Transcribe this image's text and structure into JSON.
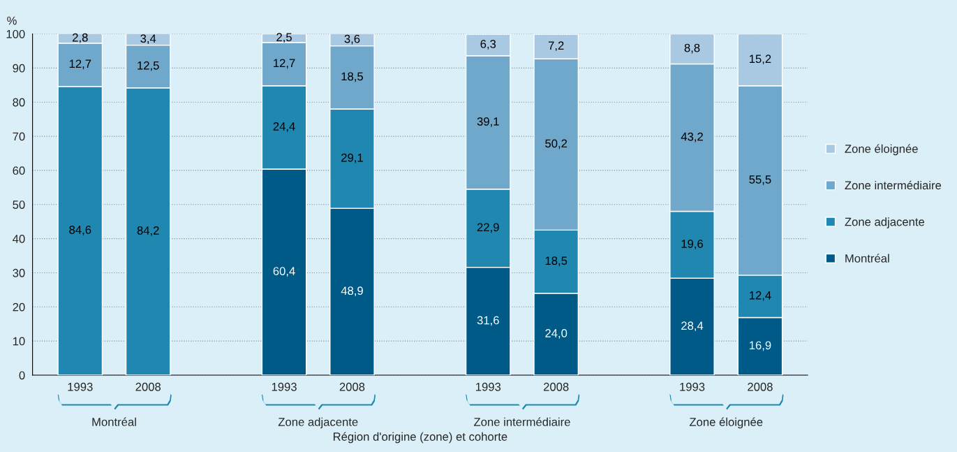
{
  "chart_data": {
    "type": "bar",
    "stacked": true,
    "ylabel": "%",
    "xlabel": "Région d'origine (zone) et cohorte",
    "categories": [
      "1993",
      "2008",
      null,
      "1993",
      "2008",
      null,
      "1993",
      "2008",
      null,
      "1993",
      "2008"
    ],
    "series": [
      {
        "name": "Montréal",
        "color": "#005a87",
        "values": [
          null,
          null,
          null,
          60.4,
          48.9,
          null,
          31.6,
          24.0,
          null,
          28.4,
          16.9
        ],
        "value_labels": [
          null,
          null,
          null,
          "60,4",
          "48,9",
          null,
          "31,6",
          "24,0",
          null,
          "28,4",
          "16,9"
        ]
      },
      {
        "name": "Zone adjacente",
        "color": "#1f87b0",
        "values": [
          84.6,
          84.2,
          null,
          24.4,
          29.1,
          null,
          22.9,
          18.5,
          null,
          19.6,
          12.4
        ],
        "value_labels": [
          "84,6",
          "84,2",
          null,
          "24,4",
          "29,1",
          null,
          "22,9",
          "18,5",
          null,
          "19,6",
          "12,4"
        ]
      },
      {
        "name": "Zone intermédiaire",
        "color": "#6fa8ca",
        "values": [
          12.7,
          12.5,
          null,
          12.7,
          18.5,
          null,
          39.1,
          50.2,
          null,
          43.2,
          55.5
        ],
        "value_labels": [
          "12,7",
          "12,5",
          null,
          "12,7",
          "18,5",
          null,
          "39,1",
          "50,2",
          null,
          "43,2",
          "55,5"
        ]
      },
      {
        "name": "Zone éloignée",
        "color": "#a9c9e2",
        "values": [
          2.8,
          3.4,
          null,
          2.5,
          3.6,
          null,
          6.3,
          7.2,
          null,
          8.8,
          15.2
        ],
        "value_labels": [
          "2,8",
          "3,4",
          null,
          "2,5",
          "3,6",
          null,
          "6,3",
          "7,2",
          null,
          "8,8",
          "15,2"
        ]
      }
    ],
    "annotations": [
      "Montréal",
      "Zone adjacente",
      "Zone intermédiaire",
      "Zone éloignée"
    ],
    "ylim": [
      0,
      100
    ],
    "yticks": [
      0,
      10,
      20,
      30,
      40,
      50,
      60,
      70,
      80,
      90,
      100
    ],
    "grid": "y",
    "legend": "right"
  }
}
